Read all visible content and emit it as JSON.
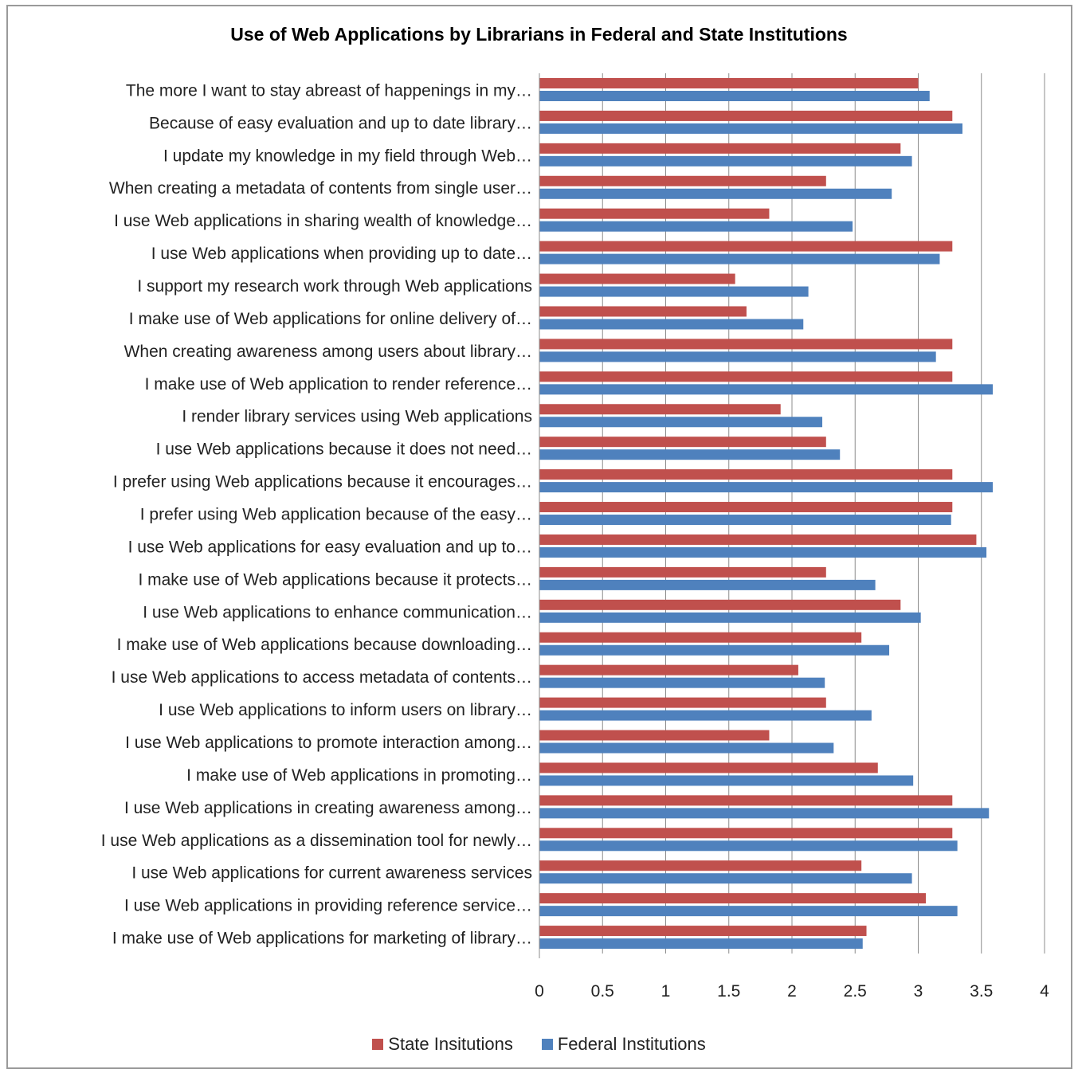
{
  "chart_data": {
    "type": "bar",
    "orientation": "horizontal",
    "title": "Use of Web Applications by Librarians in Federal and State Institutions",
    "categories": [
      "The more I want to stay abreast  of happenings in my…",
      "Because of easy evaluation and up to date library…",
      "I update my knowledge in my field through Web…",
      "When creating a metadata of contents from single user…",
      "I use Web applications in sharing wealth of knowledge…",
      "I use Web applications when providing up to date…",
      "I support my research  work through Web applications",
      "I make use of Web applications for online delivery of…",
      "When creating awareness among users about library…",
      "I make use of Web application to render reference…",
      "I render library services using Web applications",
      "I use Web applications because it does not need…",
      "I prefer using Web applications  because it encourages…",
      "I prefer using Web application because of the easy…",
      "I use Web applications for easy evaluation and up to…",
      "I make use of Web applications because it protects…",
      "I use Web applications to enhance communication…",
      "I make use of Web applications because downloading…",
      "I use Web applications to access metadata of contents…",
      "I use Web applications to inform users on library…",
      "I use Web applications to promote interaction among…",
      "I make use of Web applications in promoting…",
      "I use Web applications in creating awareness among…",
      "I use Web applications  as a dissemination tool for newly…",
      "I use Web applications for current awareness services",
      "I use Web applications in providing reference  service…",
      "I make use of Web applications for marketing of library…"
    ],
    "series": [
      {
        "name": "State Insitutions",
        "color": "#c0504d",
        "values": [
          3.0,
          3.27,
          2.86,
          2.27,
          1.82,
          3.27,
          1.55,
          1.64,
          3.27,
          3.27,
          1.91,
          2.27,
          3.27,
          3.27,
          3.46,
          2.27,
          2.86,
          2.55,
          2.05,
          2.27,
          1.82,
          2.68,
          3.27,
          3.27,
          2.55,
          3.06,
          2.59
        ]
      },
      {
        "name": "Federal Institutions",
        "color": "#4f81bd",
        "values": [
          3.09,
          3.35,
          2.95,
          2.79,
          2.48,
          3.17,
          2.13,
          2.09,
          3.14,
          3.59,
          2.24,
          2.38,
          3.59,
          3.26,
          3.54,
          2.66,
          3.02,
          2.77,
          2.26,
          2.63,
          2.33,
          2.96,
          3.56,
          3.31,
          2.95,
          3.31,
          2.56
        ]
      }
    ],
    "xlim": [
      0,
      4
    ],
    "xticks": [
      "0",
      "0.5",
      "1",
      "1.5",
      "2",
      "2.5",
      "3",
      "3.5",
      "4"
    ],
    "grid": true,
    "legend_position": "bottom"
  }
}
